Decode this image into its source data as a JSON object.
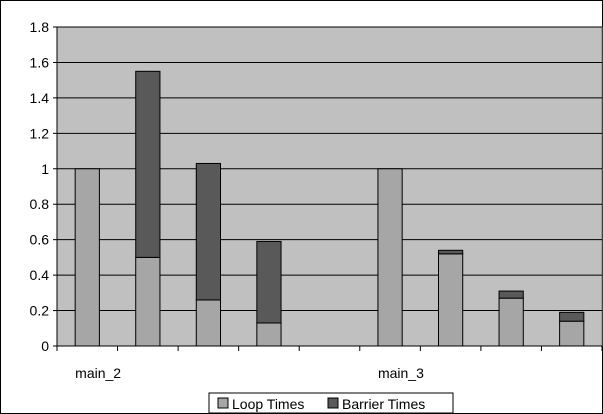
{
  "chart_data": {
    "type": "bar",
    "stacked": true,
    "categories": [
      "main_2",
      "",
      "",
      "",
      "",
      "main_3",
      "",
      "",
      ""
    ],
    "series": [
      {
        "name": "Loop Times",
        "color": "#a6a6a6",
        "values": [
          1.0,
          0.5,
          0.26,
          0.13,
          null,
          1.0,
          0.52,
          0.27,
          0.14
        ]
      },
      {
        "name": "Barrier Times",
        "color": "#595959",
        "values": [
          0.0,
          1.05,
          0.77,
          0.46,
          null,
          0.0,
          0.02,
          0.04,
          0.05
        ]
      }
    ],
    "ylim": [
      0,
      1.8
    ],
    "yticks": [
      "0",
      "0.2",
      "0.4",
      "0.6",
      "0.8",
      "1",
      "1.2",
      "1.4",
      "1.6",
      "1.8"
    ],
    "grid": true,
    "legend_position": "bottom",
    "plot_background": "#c0c0c0"
  }
}
